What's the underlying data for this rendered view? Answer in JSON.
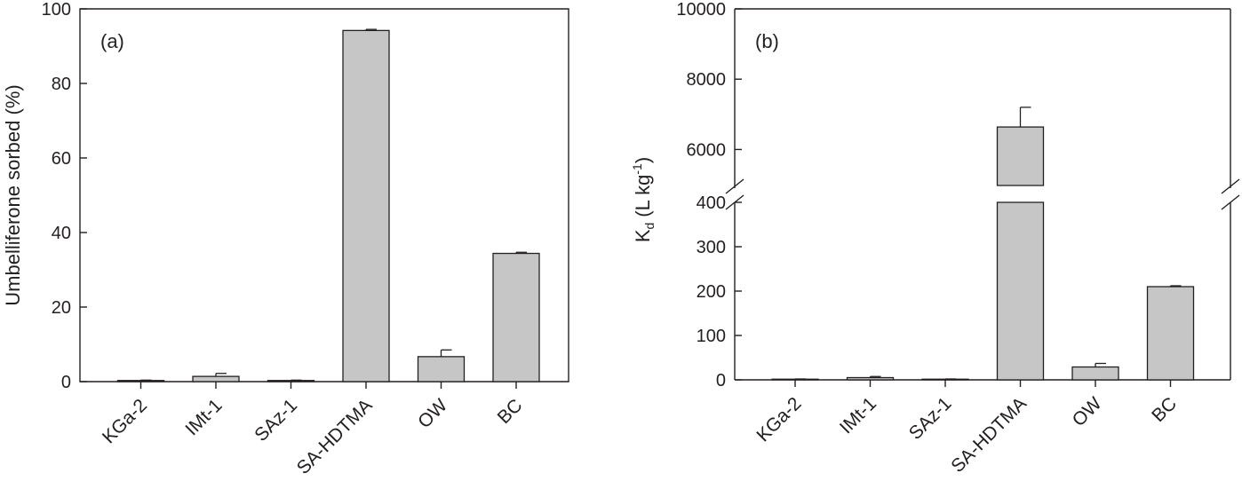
{
  "chart_data": [
    {
      "panel": "(a)",
      "type": "bar",
      "categories": [
        "KGa-2",
        "IMt-1",
        "SAz-1",
        "SA-HDTMA",
        "OW",
        "BC"
      ],
      "values": [
        0.3,
        1.4,
        0.3,
        94.2,
        6.7,
        34.4
      ],
      "errors": [
        0.1,
        0.8,
        0.1,
        0.3,
        1.8,
        0.3
      ],
      "ylabel": "Umbelliferone sorbed (%)",
      "ylim": [
        0,
        100
      ],
      "yticks": [
        "0",
        "20",
        "40",
        "60",
        "80",
        "100"
      ],
      "grid": false
    },
    {
      "panel": "(b)",
      "type": "bar",
      "categories": [
        "KGa-2",
        "IMt-1",
        "SAz-1",
        "SA-HDTMA",
        "OW",
        "BC"
      ],
      "values": [
        1.5,
        5,
        1.5,
        6640,
        29,
        210
      ],
      "errors": [
        0.5,
        2.5,
        0.5,
        560,
        8,
        2
      ],
      "ylabel": "K",
      "ylabel_sub": "d",
      "ylabel_unit": "(L kg",
      "ylabel_unit_sup": "-1",
      "ylabel_close": ")",
      "axis_break": true,
      "ylim_lower": [
        0,
        400
      ],
      "ylim_upper": [
        4900,
        10000
      ],
      "yticks_lower": [
        "0",
        "100",
        "200",
        "300",
        "400"
      ],
      "yticks_upper": [
        "6000",
        "8000",
        "10000"
      ],
      "grid": false
    }
  ]
}
